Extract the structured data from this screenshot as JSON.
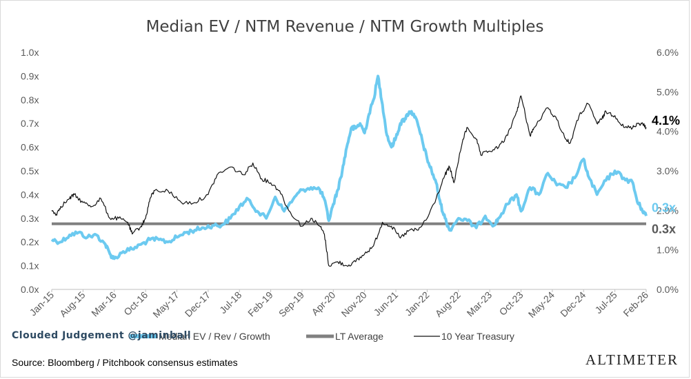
{
  "chart_data": {
    "type": "line",
    "title": "Median EV / NTM Revenue / NTM Growth Multiples",
    "x_tick_labels": [
      "Jan-15",
      "Aug-15",
      "Mar-16",
      "Oct-16",
      "May-17",
      "Dec-17",
      "Jul-18",
      "Feb-19",
      "Sep-19",
      "Apr-20",
      "Nov-20",
      "Jun-21",
      "Jan-22",
      "Aug-22",
      "Mar-23",
      "Oct-23",
      "May-24",
      "Dec-24",
      "Jul-25",
      "Feb-26"
    ],
    "x_range": [
      "2015-01",
      "2026-02"
    ],
    "y_left": {
      "ticks": [
        "0.0x",
        "0.1x",
        "0.2x",
        "0.3x",
        "0.4x",
        "0.5x",
        "0.6x",
        "0.7x",
        "0.8x",
        "0.9x",
        "1.0x"
      ],
      "ylim": [
        0,
        1.0
      ]
    },
    "y_right": {
      "ticks": [
        "0.0%",
        "1.0%",
        "2.0%",
        "3.0%",
        "4.0%",
        "5.0%",
        "6.0%"
      ],
      "ylim": [
        0,
        6.0
      ]
    },
    "series": [
      {
        "name": "Median EV / Rev / Growth",
        "axis": "left",
        "color": "#6ccaf0",
        "points": [
          [
            "2015-01",
            0.21
          ],
          [
            "2015-03",
            0.2
          ],
          [
            "2015-05",
            0.23
          ],
          [
            "2015-07",
            0.24
          ],
          [
            "2015-09",
            0.22
          ],
          [
            "2015-11",
            0.23
          ],
          [
            "2016-01",
            0.19
          ],
          [
            "2016-02",
            0.15
          ],
          [
            "2016-03",
            0.13
          ],
          [
            "2016-05",
            0.16
          ],
          [
            "2016-07",
            0.17
          ],
          [
            "2016-09",
            0.19
          ],
          [
            "2016-11",
            0.21
          ],
          [
            "2017-01",
            0.21
          ],
          [
            "2017-03",
            0.2
          ],
          [
            "2017-05",
            0.22
          ],
          [
            "2017-07",
            0.24
          ],
          [
            "2017-09",
            0.25
          ],
          [
            "2017-11",
            0.26
          ],
          [
            "2018-01",
            0.27
          ],
          [
            "2018-03",
            0.27
          ],
          [
            "2018-05",
            0.3
          ],
          [
            "2018-07",
            0.35
          ],
          [
            "2018-09",
            0.38
          ],
          [
            "2018-11",
            0.33
          ],
          [
            "2019-01",
            0.3
          ],
          [
            "2019-03",
            0.39
          ],
          [
            "2019-05",
            0.33
          ],
          [
            "2019-07",
            0.38
          ],
          [
            "2019-09",
            0.42
          ],
          [
            "2019-11",
            0.43
          ],
          [
            "2020-01",
            0.42
          ],
          [
            "2020-02",
            0.38
          ],
          [
            "2020-03",
            0.29
          ],
          [
            "2020-04",
            0.36
          ],
          [
            "2020-05",
            0.42
          ],
          [
            "2020-06",
            0.5
          ],
          [
            "2020-07",
            0.6
          ],
          [
            "2020-08",
            0.68
          ],
          [
            "2020-09",
            0.68
          ],
          [
            "2020-10",
            0.7
          ],
          [
            "2020-11",
            0.66
          ],
          [
            "2020-12",
            0.74
          ],
          [
            "2021-01",
            0.8
          ],
          [
            "2021-02",
            0.9
          ],
          [
            "2021-03",
            0.78
          ],
          [
            "2021-04",
            0.65
          ],
          [
            "2021-05",
            0.6
          ],
          [
            "2021-06",
            0.64
          ],
          [
            "2021-07",
            0.7
          ],
          [
            "2021-08",
            0.72
          ],
          [
            "2021-09",
            0.75
          ],
          [
            "2021-10",
            0.74
          ],
          [
            "2021-11",
            0.69
          ],
          [
            "2021-12",
            0.62
          ],
          [
            "2022-01",
            0.55
          ],
          [
            "2022-02",
            0.5
          ],
          [
            "2022-03",
            0.45
          ],
          [
            "2022-04",
            0.36
          ],
          [
            "2022-05",
            0.3
          ],
          [
            "2022-06",
            0.25
          ],
          [
            "2022-08",
            0.3
          ],
          [
            "2022-10",
            0.29
          ],
          [
            "2022-12",
            0.26
          ],
          [
            "2023-02",
            0.31
          ],
          [
            "2023-04",
            0.27
          ],
          [
            "2023-05",
            0.3
          ],
          [
            "2023-07",
            0.36
          ],
          [
            "2023-09",
            0.4
          ],
          [
            "2023-10",
            0.33
          ],
          [
            "2023-12",
            0.43
          ],
          [
            "2024-02",
            0.4
          ],
          [
            "2024-04",
            0.49
          ],
          [
            "2024-06",
            0.44
          ],
          [
            "2024-08",
            0.43
          ],
          [
            "2024-10",
            0.47
          ],
          [
            "2024-12",
            0.55
          ],
          [
            "2025-01",
            0.48
          ],
          [
            "2025-03",
            0.4
          ],
          [
            "2025-05",
            0.46
          ],
          [
            "2025-07",
            0.5
          ],
          [
            "2025-09",
            0.47
          ],
          [
            "2025-11",
            0.45
          ],
          [
            "2025-12",
            0.37
          ],
          [
            "2026-01",
            0.34
          ],
          [
            "2026-02",
            0.31
          ]
        ]
      },
      {
        "name": "LT Average",
        "axis": "left",
        "color": "#808080",
        "points": [
          [
            "2015-01",
            0.277
          ],
          [
            "2026-02",
            0.277
          ]
        ]
      },
      {
        "name": "10 Year Treasury",
        "axis": "right",
        "color": "#111111",
        "points": [
          [
            "2015-01",
            2.0
          ],
          [
            "2015-02",
            1.9
          ],
          [
            "2015-03",
            2.1
          ],
          [
            "2015-05",
            2.3
          ],
          [
            "2015-06",
            2.4
          ],
          [
            "2015-08",
            2.2
          ],
          [
            "2015-10",
            2.1
          ],
          [
            "2015-12",
            2.3
          ],
          [
            "2016-02",
            1.8
          ],
          [
            "2016-04",
            1.8
          ],
          [
            "2016-06",
            1.7
          ],
          [
            "2016-07",
            1.4
          ],
          [
            "2016-09",
            1.6
          ],
          [
            "2016-10",
            1.8
          ],
          [
            "2016-11",
            2.3
          ],
          [
            "2016-12",
            2.5
          ],
          [
            "2017-03",
            2.5
          ],
          [
            "2017-06",
            2.2
          ],
          [
            "2017-09",
            2.2
          ],
          [
            "2017-12",
            2.4
          ],
          [
            "2018-02",
            2.9
          ],
          [
            "2018-05",
            3.1
          ],
          [
            "2018-08",
            2.9
          ],
          [
            "2018-10",
            3.2
          ],
          [
            "2018-12",
            2.8
          ],
          [
            "2019-02",
            2.7
          ],
          [
            "2019-04",
            2.5
          ],
          [
            "2019-06",
            2.0
          ],
          [
            "2019-09",
            1.6
          ],
          [
            "2019-11",
            1.8
          ],
          [
            "2020-01",
            1.6
          ],
          [
            "2020-02",
            1.4
          ],
          [
            "2020-03",
            0.6
          ],
          [
            "2020-05",
            0.7
          ],
          [
            "2020-07",
            0.6
          ],
          [
            "2020-09",
            0.7
          ],
          [
            "2020-11",
            0.9
          ],
          [
            "2021-01",
            1.1
          ],
          [
            "2021-03",
            1.7
          ],
          [
            "2021-05",
            1.6
          ],
          [
            "2021-07",
            1.3
          ],
          [
            "2021-09",
            1.5
          ],
          [
            "2021-11",
            1.5
          ],
          [
            "2022-01",
            1.8
          ],
          [
            "2022-03",
            2.3
          ],
          [
            "2022-05",
            2.9
          ],
          [
            "2022-06",
            3.1
          ],
          [
            "2022-07",
            2.7
          ],
          [
            "2022-09",
            3.8
          ],
          [
            "2022-10",
            4.1
          ],
          [
            "2022-12",
            3.8
          ],
          [
            "2023-01",
            3.4
          ],
          [
            "2023-03",
            3.5
          ],
          [
            "2023-05",
            3.6
          ],
          [
            "2023-07",
            3.9
          ],
          [
            "2023-09",
            4.5
          ],
          [
            "2023-10",
            4.9
          ],
          [
            "2023-12",
            3.9
          ],
          [
            "2024-01",
            4.1
          ],
          [
            "2024-04",
            4.6
          ],
          [
            "2024-06",
            4.3
          ],
          [
            "2024-08",
            3.8
          ],
          [
            "2024-09",
            3.7
          ],
          [
            "2024-11",
            4.4
          ],
          [
            "2025-01",
            4.7
          ],
          [
            "2025-03",
            4.2
          ],
          [
            "2025-04",
            4.3
          ],
          [
            "2025-05",
            4.5
          ],
          [
            "2025-07",
            4.4
          ],
          [
            "2025-09",
            4.1
          ],
          [
            "2025-11",
            4.1
          ],
          [
            "2025-12",
            4.2
          ],
          [
            "2026-01",
            4.2
          ],
          [
            "2026-02",
            4.1
          ]
        ]
      }
    ],
    "end_labels": [
      {
        "text": "4.1%",
        "color": "#000000",
        "series": "10 Year Treasury"
      },
      {
        "text": "0.3x",
        "color": "#6ccaf0",
        "series": "Median EV / Rev / Growth"
      },
      {
        "text": "0.3x",
        "color": "#595959",
        "series": "LT Average"
      }
    ],
    "legend": {
      "placement": "bottom",
      "entries": [
        "Median EV / Rev / Growth",
        "LT Average",
        "10 Year Treasury"
      ]
    },
    "grid": false
  },
  "footer": {
    "brand": "Clouded Judgement @jaminball",
    "source": "Source: Bloomberg / Pitchbook consensus estimates",
    "logo_text": "ALTIMETER"
  }
}
